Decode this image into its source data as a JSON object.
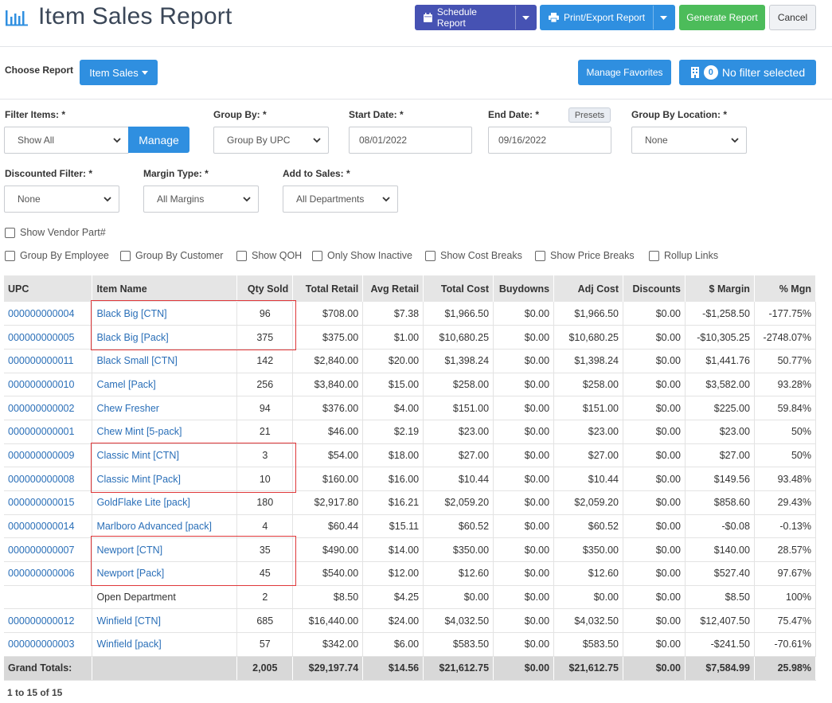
{
  "header": {
    "title": "Item Sales Report",
    "schedule_label": "Schedule Report",
    "print_label": "Print/Export Report",
    "generate_label": "Generate Report",
    "cancel_label": "Cancel"
  },
  "choose": {
    "label": "Choose Report",
    "report_value": "Item Sales",
    "favorites_label": "Manage Favorites",
    "filter_count": "0",
    "filter_label": "No filter selected"
  },
  "filters": {
    "filter_items_label": "Filter Items: *",
    "filter_items_value": "Show All",
    "manage_label": "Manage",
    "group_by_label": "Group By: *",
    "group_by_value": "Group By UPC",
    "start_date_label": "Start Date: *",
    "start_date_value": "08/01/2022",
    "end_date_label": "End Date: *",
    "end_date_value": "09/16/2022",
    "presets_label": "Presets",
    "group_location_label": "Group By Location: *",
    "group_location_value": "None",
    "discounted_label": "Discounted Filter: *",
    "discounted_value": "None",
    "margin_label": "Margin Type: *",
    "margin_value": "All Margins",
    "add_sales_label": "Add to Sales: *",
    "add_sales_value": "All Departments"
  },
  "checkboxes": {
    "vendor_part": "Show Vendor Part#",
    "group_employee": "Group By Employee",
    "group_customer": "Group By Customer",
    "show_qoh": "Show QOH",
    "only_inactive": "Only Show Inactive",
    "cost_breaks": "Show Cost Breaks",
    "price_breaks": "Show Price Breaks",
    "rollup": "Rollup Links"
  },
  "table": {
    "headers": [
      "UPC",
      "Item Name",
      "Qty Sold",
      "Total Retail",
      "Avg Retail",
      "Total Cost",
      "Buydowns",
      "Adj Cost",
      "Discounts",
      "$ Margin",
      "% Mgn"
    ],
    "rows": [
      [
        "000000000004",
        "Black Big [CTN]",
        "96",
        "$708.00",
        "$7.38",
        "$1,966.50",
        "$0.00",
        "$1,966.50",
        "$0.00",
        "-$1,258.50",
        "-177.75%"
      ],
      [
        "000000000005",
        "Black Big [Pack]",
        "375",
        "$375.00",
        "$1.00",
        "$10,680.25",
        "$0.00",
        "$10,680.25",
        "$0.00",
        "-$10,305.25",
        "-2748.07%"
      ],
      [
        "000000000011",
        "Black Small [CTN]",
        "142",
        "$2,840.00",
        "$20.00",
        "$1,398.24",
        "$0.00",
        "$1,398.24",
        "$0.00",
        "$1,441.76",
        "50.77%"
      ],
      [
        "000000000010",
        "Camel [Pack]",
        "256",
        "$3,840.00",
        "$15.00",
        "$258.00",
        "$0.00",
        "$258.00",
        "$0.00",
        "$3,582.00",
        "93.28%"
      ],
      [
        "000000000002",
        "Chew Fresher",
        "94",
        "$376.00",
        "$4.00",
        "$151.00",
        "$0.00",
        "$151.00",
        "$0.00",
        "$225.00",
        "59.84%"
      ],
      [
        "000000000001",
        "Chew Mint [5-pack]",
        "21",
        "$46.00",
        "$2.19",
        "$23.00",
        "$0.00",
        "$23.00",
        "$0.00",
        "$23.00",
        "50%"
      ],
      [
        "000000000009",
        "Classic Mint [CTN]",
        "3",
        "$54.00",
        "$18.00",
        "$27.00",
        "$0.00",
        "$27.00",
        "$0.00",
        "$27.00",
        "50%"
      ],
      [
        "000000000008",
        "Classic Mint [Pack]",
        "10",
        "$160.00",
        "$16.00",
        "$10.44",
        "$0.00",
        "$10.44",
        "$0.00",
        "$149.56",
        "93.48%"
      ],
      [
        "000000000015",
        "GoldFlake Lite [pack]",
        "180",
        "$2,917.80",
        "$16.21",
        "$2,059.20",
        "$0.00",
        "$2,059.20",
        "$0.00",
        "$858.60",
        "29.43%"
      ],
      [
        "000000000014",
        "Marlboro Advanced [pack]",
        "4",
        "$60.44",
        "$15.11",
        "$60.52",
        "$0.00",
        "$60.52",
        "$0.00",
        "-$0.08",
        "-0.13%"
      ],
      [
        "000000000007",
        "Newport [CTN]",
        "35",
        "$490.00",
        "$14.00",
        "$350.00",
        "$0.00",
        "$350.00",
        "$0.00",
        "$140.00",
        "28.57%"
      ],
      [
        "000000000006",
        "Newport [Pack]",
        "45",
        "$540.00",
        "$12.00",
        "$12.60",
        "$0.00",
        "$12.60",
        "$0.00",
        "$527.40",
        "97.67%"
      ],
      [
        "",
        "Open Department",
        "2",
        "$8.50",
        "$4.25",
        "$0.00",
        "$0.00",
        "$0.00",
        "$0.00",
        "$8.50",
        "100%"
      ],
      [
        "000000000012",
        "Winfield [CTN]",
        "685",
        "$16,440.00",
        "$24.00",
        "$4,032.50",
        "$0.00",
        "$4,032.50",
        "$0.00",
        "$12,407.50",
        "75.47%"
      ],
      [
        "000000000003",
        "Winfield [pack]",
        "57",
        "$342.00",
        "$6.00",
        "$583.50",
        "$0.00",
        "$583.50",
        "$0.00",
        "-$241.50",
        "-70.61%"
      ]
    ],
    "totals": [
      "Grand Totals:",
      "",
      "2,005",
      "$29,197.74",
      "$14.56",
      "$21,612.75",
      "$0.00",
      "$21,612.75",
      "$0.00",
      "$7,584.99",
      "25.98%"
    ]
  },
  "footer": {
    "count": "1 to 15 of 15"
  },
  "colors": {
    "primary": "#2f8fe0",
    "schedule": "#4652b3",
    "generate": "#4cbc5a",
    "highlight_border": "#e0383a",
    "link": "#2a6fb8"
  }
}
